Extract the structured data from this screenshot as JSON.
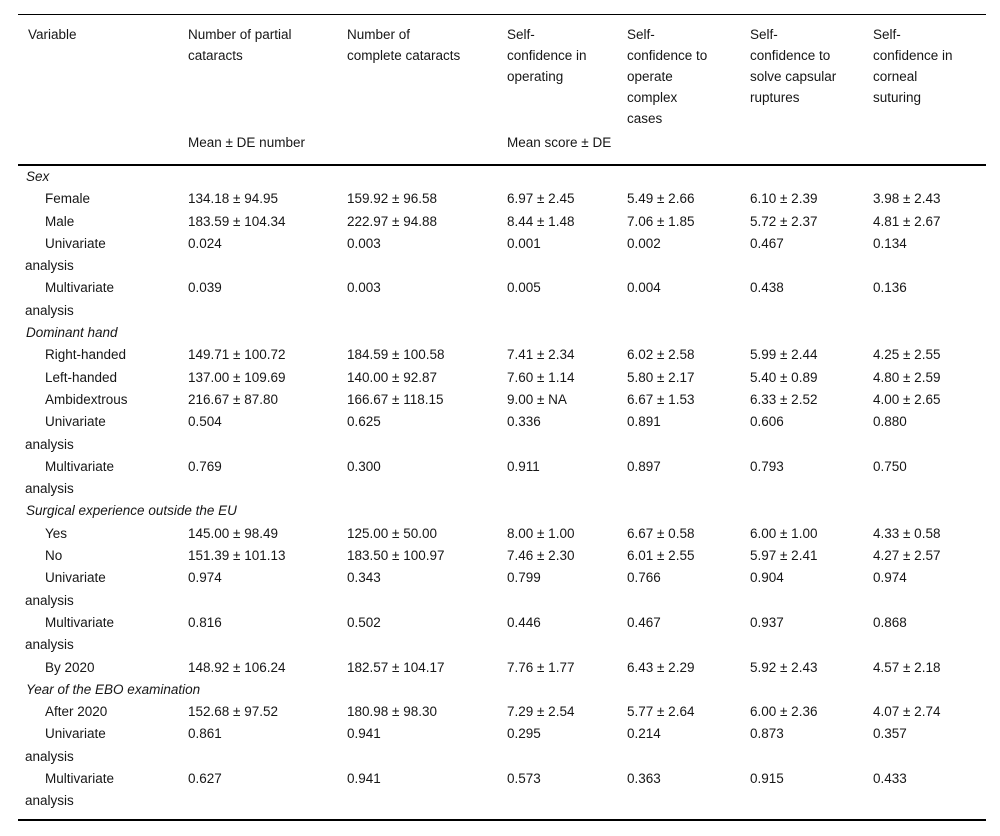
{
  "page": {
    "background_color": "#ffffff",
    "text_color": "#161616"
  },
  "table": {
    "columns": [
      {
        "label": "Variable"
      },
      {
        "label": "Number of partial\ncataracts"
      },
      {
        "label": "Number of\ncomplete cataracts"
      },
      {
        "label": "Self-\nconfidence in\noperating"
      },
      {
        "label": "Self-\nconfidence to\noperate\ncomplex\ncases"
      },
      {
        "label": "Self-\nconfidence to\nsolve capsular\nruptures"
      },
      {
        "label": "Self-\nconfidence in\ncorneal\nsuturing"
      }
    ],
    "subheader": {
      "spacer": "",
      "left_group": "Mean ± DE number",
      "right_group": "Mean score ± DE"
    },
    "sections": [
      {
        "title": "Sex",
        "rows": [
          {
            "label": "Female",
            "values": [
              "134.18 ± 94.95",
              "159.92 ± 96.58",
              "6.97 ± 2.45",
              "5.49 ± 2.66",
              "6.10 ± 2.39",
              "3.98 ± 2.43"
            ]
          },
          {
            "label": "Male",
            "values": [
              "183.59 ± 104.34",
              "222.97 ± 94.88",
              "8.44 ± 1.48",
              "7.06 ± 1.85",
              "5.72 ± 2.37",
              "4.81 ± 2.67"
            ]
          },
          {
            "label": "Univariate\nanalysis",
            "values": [
              "0.024",
              "0.003",
              "0.001",
              "0.002",
              "0.467",
              "0.134"
            ]
          },
          {
            "label": "Multivariate\nanalysis",
            "values": [
              "0.039",
              "0.003",
              "0.005",
              "0.004",
              "0.438",
              "0.136"
            ]
          }
        ]
      },
      {
        "title": "Dominant hand",
        "rows": [
          {
            "label": "Right-handed",
            "values": [
              "149.71 ± 100.72",
              "184.59 ± 100.58",
              "7.41 ± 2.34",
              "6.02 ± 2.58",
              "5.99 ± 2.44",
              "4.25 ± 2.55"
            ]
          },
          {
            "label": "Left-handed",
            "values": [
              "137.00 ± 109.69",
              "140.00 ± 92.87",
              "7.60 ± 1.14",
              "5.80 ± 2.17",
              "5.40 ± 0.89",
              "4.80 ± 2.59"
            ]
          },
          {
            "label": "Ambidextrous",
            "values": [
              "216.67 ± 87.80",
              "166.67 ± 118.15",
              "9.00 ± NA",
              "6.67 ± 1.53",
              "6.33 ± 2.52",
              "4.00 ± 2.65"
            ]
          },
          {
            "label": "Univariate\nanalysis",
            "values": [
              "0.504",
              "0.625",
              "0.336",
              "0.891",
              "0.606",
              "0.880"
            ]
          },
          {
            "label": "Multivariate\nanalysis",
            "values": [
              "0.769",
              "0.300",
              "0.911",
              "0.897",
              "0.793",
              "0.750"
            ]
          }
        ]
      },
      {
        "title": "Surgical experience outside the EU",
        "rows": [
          {
            "label": "Yes",
            "values": [
              "145.00 ± 98.49",
              "125.00 ± 50.00",
              "8.00 ± 1.00",
              "6.67 ± 0.58",
              "6.00 ± 1.00",
              "4.33 ± 0.58"
            ]
          },
          {
            "label": "No",
            "values": [
              "151.39 ± 101.13",
              "183.50 ± 100.97",
              "7.46 ± 2.30",
              "6.01 ± 2.55",
              "5.97 ± 2.41",
              "4.27 ± 2.57"
            ]
          },
          {
            "label": "Univariate\nanalysis",
            "values": [
              "0.974",
              "0.343",
              "0.799",
              "0.766",
              "0.904",
              "0.974"
            ]
          },
          {
            "label": "Multivariate\nanalysis",
            "values": [
              "0.816",
              "0.502",
              "0.446",
              "0.467",
              "0.937",
              "0.868"
            ]
          },
          {
            "label": "By 2020",
            "values": [
              "148.92 ± 106.24",
              "182.57 ± 104.17",
              "7.76 ± 1.77",
              "6.43 ± 2.29",
              "5.92 ± 2.43",
              "4.57 ± 2.18"
            ]
          }
        ]
      },
      {
        "title": "Year of the EBO examination",
        "rows": [
          {
            "label": "After 2020",
            "values": [
              "152.68 ± 97.52",
              "180.98 ± 98.30",
              "7.29 ± 2.54",
              "5.77 ± 2.64",
              "6.00 ± 2.36",
              "4.07 ± 2.74"
            ]
          },
          {
            "label": "Univariate\nanalysis",
            "values": [
              "0.861",
              "0.941",
              "0.295",
              "0.214",
              "0.873",
              "0.357"
            ]
          },
          {
            "label": "Multivariate\nanalysis",
            "values": [
              "0.627",
              "0.941",
              "0.573",
              "0.363",
              "0.915",
              "0.433"
            ]
          }
        ]
      }
    ]
  }
}
